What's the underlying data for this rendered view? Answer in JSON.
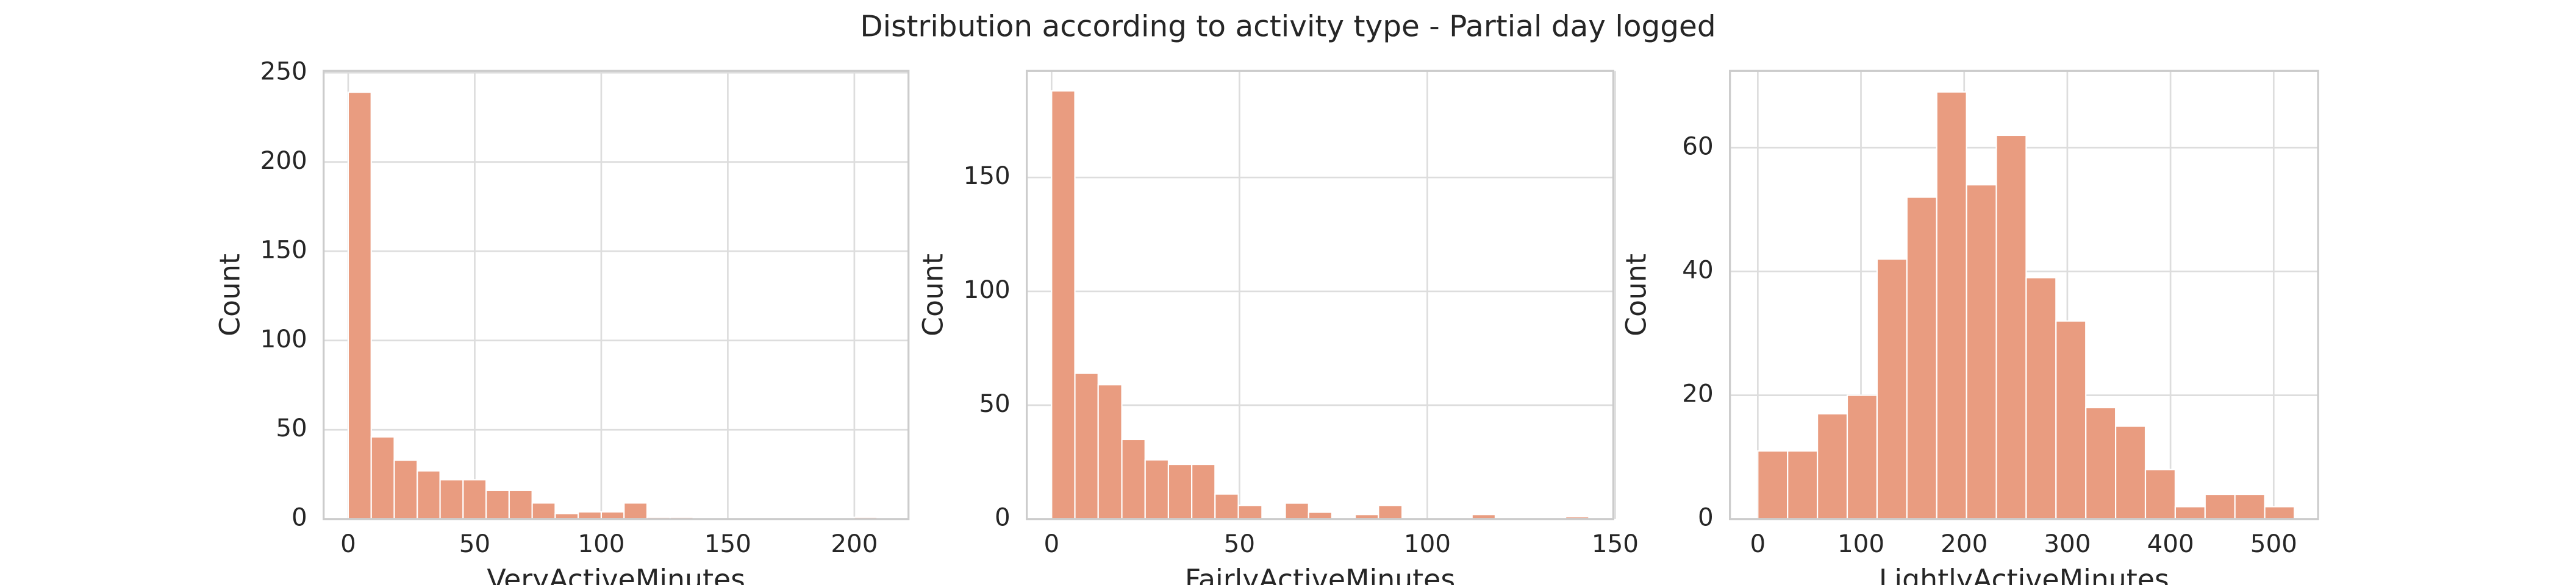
{
  "title": "Distribution according to activity type - Partial day logged",
  "chart_data": [
    {
      "type": "histogram",
      "xlabel": "VeryActiveMinutes",
      "ylabel": "Count",
      "color": "#e99c80",
      "grid": true,
      "bins": [
        0,
        9.1,
        18.2,
        27.3,
        36.3,
        45.4,
        54.5,
        63.6,
        72.7,
        81.8,
        90.9,
        100,
        109,
        118.1,
        127.2,
        136.3,
        145.4,
        154.5,
        163.6,
        172.7,
        181.7,
        190.8,
        199.9,
        209
      ],
      "values": [
        239,
        46,
        33,
        27,
        22,
        22,
        16,
        16,
        9,
        3,
        4,
        4,
        9,
        1,
        1,
        0,
        0,
        0,
        0,
        0,
        0,
        0,
        1
      ],
      "xlim": [
        -9.7,
        221.4
      ],
      "ylim": [
        0,
        251
      ],
      "xticks": [
        0,
        50,
        100,
        150,
        200
      ],
      "yticks": [
        0,
        50,
        100,
        150,
        200,
        250
      ]
    },
    {
      "type": "histogram",
      "xlabel": "FairlyActiveMinutes",
      "ylabel": "Count",
      "color": "#e99c80",
      "grid": true,
      "bins": [
        0,
        6.2,
        12.4,
        18.7,
        24.9,
        31.1,
        37.3,
        43.5,
        49.7,
        56,
        62.2,
        68.4,
        74.6,
        80.8,
        87,
        93.3,
        99.5,
        105.7,
        111.9,
        118.1,
        124.3,
        130.6,
        136.8,
        143
      ],
      "values": [
        188,
        64,
        59,
        35,
        26,
        24,
        24,
        11,
        6,
        0,
        7,
        3,
        0,
        2,
        6,
        0,
        0,
        0,
        2,
        0,
        0,
        0,
        1
      ],
      "xlim": [
        -6.6,
        149.5
      ],
      "ylim": [
        0,
        196.8
      ],
      "xticks": [
        0,
        50,
        100,
        150
      ],
      "yticks": [
        0,
        50,
        100,
        150
      ]
    },
    {
      "type": "histogram",
      "xlabel": "LightlyActiveMinutes",
      "ylabel": "Count",
      "color": "#e99c80",
      "grid": true,
      "bins": [
        0,
        28.9,
        57.8,
        86.7,
        115.6,
        144.5,
        173.4,
        202.3,
        231.2,
        260.1,
        289,
        317.9,
        346.8,
        375.7,
        404.6,
        433.5,
        462.4,
        491.3,
        520
      ],
      "values": [
        11,
        11,
        17,
        20,
        42,
        52,
        69,
        54,
        62,
        39,
        32,
        18,
        15,
        8,
        2,
        4,
        4,
        2
      ],
      "xlim": [
        -27,
        543
      ],
      "ylim": [
        0,
        72.4
      ],
      "xticks": [
        0,
        100,
        200,
        300,
        400,
        500
      ],
      "yticks": [
        0,
        20,
        40,
        60
      ]
    }
  ]
}
